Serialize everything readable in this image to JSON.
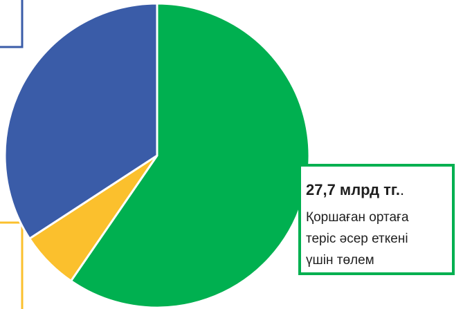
{
  "chart_data": {
    "type": "pie",
    "categories": [
      "Қоршаған ортаға теріс әсер еткені үшін төлем",
      null,
      null
    ],
    "values": [
      27.7,
      2.9,
      15.9
    ],
    "value_labels": [
      "27,7 млрд тг.",
      null,
      null
    ],
    "label_suffix": ".",
    "label_lines": [
      "Қоршаған ортаға",
      "теріс әсер еткені",
      "үшін төлем"
    ],
    "colors": [
      "#00b050",
      "#fbc02d",
      "#3a5ca8"
    ]
  }
}
